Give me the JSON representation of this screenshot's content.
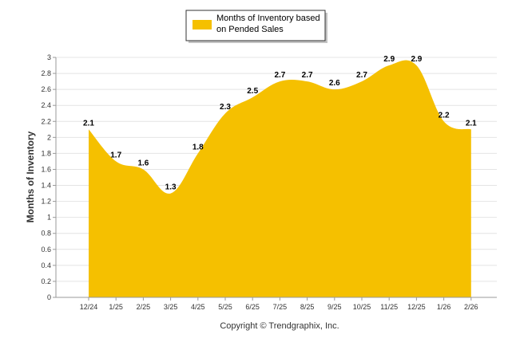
{
  "chart_data": {
    "type": "area",
    "title": "",
    "xlabel": "",
    "ylabel": "Months of Inventory",
    "ylim": [
      0,
      3
    ],
    "yticks": [
      "0",
      "0.2",
      "0.4",
      "0.6",
      "0.8",
      "1",
      "1.2",
      "1.4",
      "1.6",
      "1.8",
      "2",
      "2.2",
      "2.4",
      "2.6",
      "2.8",
      "3"
    ],
    "grid": true,
    "legend_position": "top-center",
    "categories": [
      "12/24",
      "1/25",
      "2/25",
      "3/25",
      "4/25",
      "5/25",
      "6/25",
      "7/25",
      "8/25",
      "9/25",
      "10/25",
      "11/25",
      "12/25",
      "1/26",
      "2/26"
    ],
    "series": [
      {
        "name": "Months of Inventory based on Pended Sales",
        "legend_lines": [
          "Months of Inventory based",
          "on Pended Sales"
        ],
        "values": [
          2.1,
          1.7,
          1.6,
          1.3,
          1.8,
          2.3,
          2.5,
          2.7,
          2.7,
          2.6,
          2.7,
          2.9,
          2.9,
          2.2,
          2.1
        ],
        "labels": [
          "2.1",
          "1.7",
          "1.6",
          "1.3",
          "1.8",
          "2.3",
          "2.5",
          "2.7",
          "2.7",
          "2.6",
          "2.7",
          "2.9",
          "2.9",
          "2.2",
          "2.1"
        ],
        "color": "#f5c000"
      }
    ],
    "copyright": "Copyright © Trendgraphix, Inc."
  }
}
